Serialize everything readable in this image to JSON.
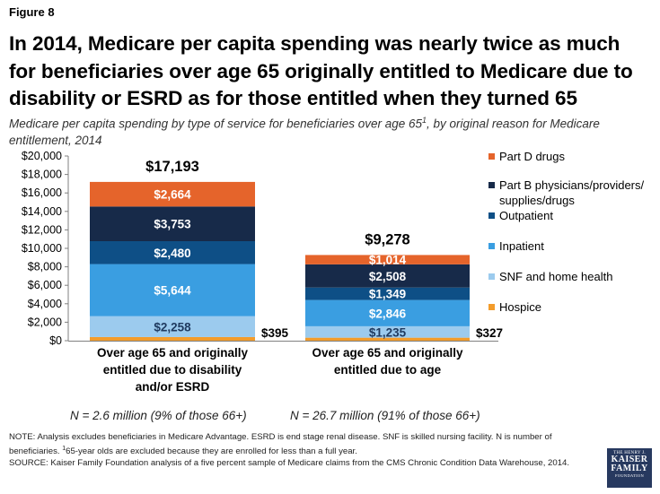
{
  "figure_label": "Figure 8",
  "title": "In 2014, Medicare per capita spending was nearly twice as much for beneficiaries over age 65 originally entitled to Medicare due to disability or ESRD as for those entitled when they turned 65",
  "subtitle": {
    "before_sup": "Medicare per capita spending by type of service for beneficiaries over age 65",
    "sup": "1",
    "after_sup": ", by original reason for Medicare entitlement, 2014"
  },
  "chart_data": {
    "type": "bar",
    "stacked": true,
    "categories": [
      "Over age 65 and originally entitled due to disability and/or ESRD",
      "Over age 65 and originally entitled due to age"
    ],
    "category_label_lines": [
      [
        "Over age 65 and originally",
        "entitled due to disability",
        "and/or ESRD"
      ],
      [
        "Over age 65 and originally",
        "entitled due to age"
      ]
    ],
    "totals": [
      17193,
      9278
    ],
    "total_labels": [
      "$17,193",
      "$9,278"
    ],
    "series": [
      {
        "name": "Hospice",
        "color": "#f39c2b",
        "values": [
          395,
          327
        ],
        "labels": [
          "$395",
          "$327"
        ],
        "label_outside": true
      },
      {
        "name": "SNF and home health",
        "color": "#9ccbee",
        "values": [
          2258,
          1235
        ],
        "labels": [
          "$2,258",
          "$1,235"
        ]
      },
      {
        "name": "Inpatient",
        "color": "#3a9ee1",
        "values": [
          5644,
          2846
        ],
        "labels": [
          "$5,644",
          "$2,846"
        ]
      },
      {
        "name": "Outpatient",
        "color": "#0e4f86",
        "values": [
          2480,
          1349
        ],
        "labels": [
          "$2,480",
          "$1,349"
        ]
      },
      {
        "name": "Part B physicians/providers/ supplies/drugs",
        "color": "#172a49",
        "values": [
          3753,
          2508
        ],
        "labels": [
          "$3,753",
          "$2,508"
        ]
      },
      {
        "name": "Part D drugs",
        "color": "#e5642b",
        "values": [
          2664,
          1014
        ],
        "labels": [
          "$2,664",
          "$1,014"
        ]
      }
    ],
    "legend_lines": [
      [
        "Part D drugs"
      ],
      [
        "Part B physicians/providers/",
        "supplies/drugs"
      ],
      [
        "Outpatient"
      ],
      [
        "Inpatient"
      ],
      [
        "SNF and home health"
      ],
      [
        "Hospice"
      ]
    ],
    "ylim": [
      0,
      20000
    ],
    "yticks": [
      0,
      2000,
      4000,
      6000,
      8000,
      10000,
      12000,
      14000,
      16000,
      18000,
      20000
    ],
    "ytick_labels": [
      "$0",
      "$2,000",
      "$4,000",
      "$6,000",
      "$8,000",
      "$10,000",
      "$12,000",
      "$14,000",
      "$16,000",
      "$18,000",
      "$20,000"
    ],
    "xlabel": "",
    "ylabel": "",
    "grid": false,
    "legend_position": "right"
  },
  "n_labels": [
    "N = 2.6 million (9% of those 66+)",
    "N = 26.7 million (91% of those 66+)"
  ],
  "notes": {
    "line1": "NOTE: Analysis excludes beneficiaries in Medicare Advantage. ESRD is end stage renal disease. SNF is skilled nursing facility. N is number of beneficiaries. ",
    "sup": "1",
    "line1_end": "65-year olds are excluded because they are enrolled for less than a full year.",
    "source": "SOURCE: Kaiser Family Foundation analysis of a five percent sample of Medicare claims from the CMS Chronic Condition Data Warehouse, 2014."
  },
  "logo": {
    "line1": "THE HENRY J.",
    "line2a": "KAISER",
    "line2b": "FAMILY",
    "line3": "FOUNDATION"
  }
}
